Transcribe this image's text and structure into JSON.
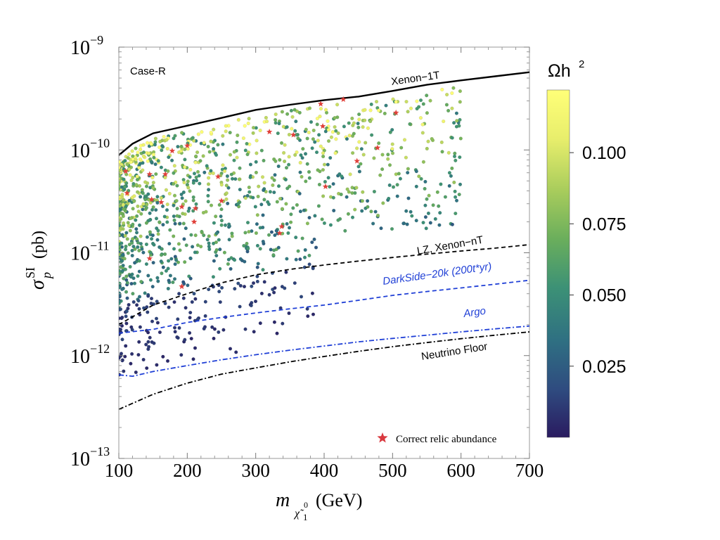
{
  "chart_data": {
    "type": "scatter",
    "case_label": "Case-R",
    "x_axis": {
      "label_main": "m",
      "label_sub": "χ̃",
      "label_sub2": "1",
      "label_sup": "0",
      "label_unit": "(GeV)",
      "range": [
        100,
        700
      ],
      "ticks": [
        100,
        200,
        300,
        400,
        500,
        600,
        700
      ],
      "tick_labels": [
        "100",
        "200",
        "300",
        "400",
        "500",
        "600",
        "700"
      ],
      "scale": "linear"
    },
    "y_axis": {
      "label_main": "σ",
      "label_sub": "p",
      "label_sup": "SI",
      "label_unit": "(pb)",
      "range": [
        1e-13,
        1e-09
      ],
      "scale": "log",
      "ticks": [
        {
          "exp": -13,
          "base": "10",
          "power": "−13"
        },
        {
          "exp": -12,
          "base": "10",
          "power": "−12"
        },
        {
          "exp": -11,
          "base": "10",
          "power": "−11"
        },
        {
          "exp": -10,
          "base": "10",
          "power": "−10"
        },
        {
          "exp": -9,
          "base": "10",
          "power": "−9"
        }
      ]
    },
    "colorbar": {
      "title": "Ωh",
      "title_sup": "2",
      "range": [
        0,
        0.122
      ],
      "ticks": [
        0.025,
        0.05,
        0.075,
        0.1
      ],
      "tick_labels": [
        "0.025",
        "0.050",
        "0.075",
        "0.100"
      ],
      "colors": [
        "#2a1b60",
        "#2f4c80",
        "#2f7082",
        "#3c9176",
        "#6aae5c",
        "#a8cc5c",
        "#e8ee6c",
        "#ffff78"
      ]
    },
    "curves": [
      {
        "name": "Xenon-1T",
        "label": "Xenon−1T",
        "color": "#000000",
        "style": "solid",
        "points": [
          [
            100,
            8.9e-11
          ],
          [
            120,
            1.15e-10
          ],
          [
            150,
            1.45e-10
          ],
          [
            200,
            1.72e-10
          ],
          [
            250,
            2.05e-10
          ],
          [
            300,
            2.45e-10
          ],
          [
            350,
            2.75e-10
          ],
          [
            400,
            3.05e-10
          ],
          [
            450,
            3.3e-10
          ],
          [
            500,
            3.75e-10
          ],
          [
            550,
            4.3e-10
          ],
          [
            600,
            4.75e-10
          ],
          [
            650,
            5.2e-10
          ],
          [
            700,
            5.7e-10
          ]
        ]
      },
      {
        "name": "LZ, Xenon-nT",
        "label": "LZ, Xenon−nT",
        "color": "#000000",
        "style": "dashed",
        "points": [
          [
            100,
            2e-12
          ],
          [
            150,
            3.1e-12
          ],
          [
            200,
            4e-12
          ],
          [
            250,
            5.1e-12
          ],
          [
            300,
            6.1e-12
          ],
          [
            350,
            6.9e-12
          ],
          [
            400,
            7.6e-12
          ],
          [
            450,
            8.3e-12
          ],
          [
            500,
            9e-12
          ],
          [
            550,
            9.7e-12
          ],
          [
            600,
            1.04e-11
          ],
          [
            650,
            1.11e-11
          ],
          [
            700,
            1.2e-11
          ]
        ]
      },
      {
        "name": "DarkSide-20k",
        "label": "DarkSide−20k (200t*yr)",
        "color": "#1f3fd6",
        "style": "dashed",
        "points": [
          [
            100,
            1.65e-12
          ],
          [
            150,
            1.8e-12
          ],
          [
            200,
            2.1e-12
          ],
          [
            250,
            2.35e-12
          ],
          [
            300,
            2.6e-12
          ],
          [
            350,
            2.85e-12
          ],
          [
            400,
            3.1e-12
          ],
          [
            450,
            3.45e-12
          ],
          [
            500,
            3.85e-12
          ],
          [
            550,
            4.2e-12
          ],
          [
            600,
            4.55e-12
          ],
          [
            650,
            4.95e-12
          ],
          [
            700,
            5.4e-12
          ]
        ]
      },
      {
        "name": "Argo",
        "label": "Argo",
        "color": "#1f3fd6",
        "style": "dashdot",
        "points": [
          [
            100,
            6.5e-13
          ],
          [
            120,
            6.3e-13
          ],
          [
            150,
            7e-13
          ],
          [
            200,
            8e-13
          ],
          [
            250,
            9.1e-13
          ],
          [
            300,
            1.02e-12
          ],
          [
            350,
            1.13e-12
          ],
          [
            400,
            1.24e-12
          ],
          [
            450,
            1.36e-12
          ],
          [
            500,
            1.47e-12
          ],
          [
            550,
            1.58e-12
          ],
          [
            600,
            1.7e-12
          ],
          [
            650,
            1.82e-12
          ],
          [
            700,
            1.94e-12
          ]
        ]
      },
      {
        "name": "Neutrino Floor",
        "label": "Neutrino Floor",
        "color": "#000000",
        "style": "dashdot",
        "points": [
          [
            100,
            3e-13
          ],
          [
            150,
            4.2e-13
          ],
          [
            200,
            5.4e-13
          ],
          [
            250,
            6.6e-13
          ],
          [
            300,
            7.6e-13
          ],
          [
            350,
            8.7e-13
          ],
          [
            400,
            9.8e-13
          ],
          [
            450,
            1.1e-12
          ],
          [
            500,
            1.22e-12
          ],
          [
            550,
            1.34e-12
          ],
          [
            600,
            1.46e-12
          ],
          [
            650,
            1.58e-12
          ],
          [
            700,
            1.7e-12
          ]
        ]
      }
    ],
    "correct_relic": {
      "legend_label": "Correct relic abundance",
      "marker_color": "#e0403a",
      "points": [
        [
          110,
          6.2e-11
        ],
        [
          145,
          5.8e-11
        ],
        [
          178,
          9.8e-11
        ],
        [
          200,
          1.1e-10
        ],
        [
          112,
          3.8e-11
        ],
        [
          148,
          3.3e-11
        ],
        [
          162,
          3.1e-11
        ],
        [
          192,
          2.8e-11
        ],
        [
          212,
          2.7e-11
        ],
        [
          245,
          5.5e-11
        ],
        [
          250,
          3.2e-11
        ],
        [
          168,
          5.8e-11
        ],
        [
          320,
          1.5e-10
        ],
        [
          355,
          1.4e-10
        ],
        [
          395,
          2.8e-10
        ],
        [
          398,
          1.7e-10
        ],
        [
          428,
          3.1e-10
        ],
        [
          448,
          7.8e-11
        ],
        [
          478,
          1.05e-10
        ],
        [
          505,
          2.3e-10
        ],
        [
          402,
          4.4e-11
        ],
        [
          338,
          1.8e-11
        ],
        [
          335,
          1.55e-11
        ],
        [
          145,
          8.8e-12
        ],
        [
          192,
          4.7e-12
        ],
        [
          210,
          2e-11
        ]
      ]
    },
    "scatter_points": {
      "count": 1350,
      "x_range": [
        100,
        600
      ],
      "omega_range": [
        0,
        0.122
      ],
      "y_extent": "between the Xenon-1T limit and 5e-13 pb; low-Ωh² points concentrated near the lower region"
    }
  }
}
